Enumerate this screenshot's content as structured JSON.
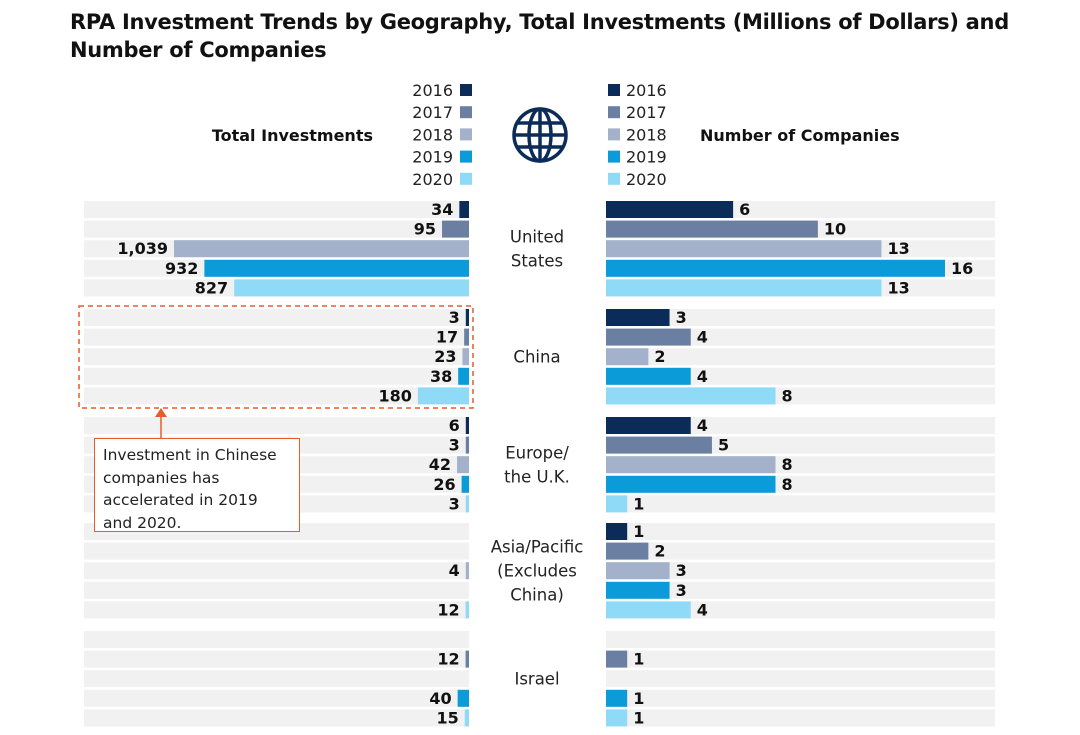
{
  "chart_data": {
    "type": "bar",
    "title": "RPA Investment Trends by Geography, Total Investments (Millions of Dollars) and Number of Companies",
    "panels": {
      "left": {
        "label": "Total Investments",
        "unit": "Millions of Dollars"
      },
      "right": {
        "label": "Number of Companies"
      }
    },
    "years": [
      "2016",
      "2017",
      "2018",
      "2019",
      "2020"
    ],
    "colors": [
      "#0b2c58",
      "#6b7fa3",
      "#a3b1cb",
      "#0b9bd8",
      "#8fdaf7"
    ],
    "regions": [
      {
        "name": [
          "United",
          "States"
        ],
        "investments": [
          34,
          95,
          1039,
          932,
          827
        ],
        "investment_labels": [
          "34",
          "95",
          "1,039",
          "932",
          "827"
        ],
        "companies": [
          6,
          10,
          13,
          16,
          13
        ]
      },
      {
        "name": [
          "China"
        ],
        "investments": [
          3,
          17,
          23,
          38,
          180
        ],
        "investment_labels": [
          "3",
          "17",
          "23",
          "38",
          "180"
        ],
        "companies": [
          3,
          4,
          2,
          4,
          8
        ]
      },
      {
        "name": [
          "Europe/",
          "the U.K."
        ],
        "investments": [
          6,
          3,
          42,
          26,
          3
        ],
        "investment_labels": [
          "6",
          "3",
          "42",
          "26",
          "3"
        ],
        "companies": [
          4,
          5,
          8,
          8,
          1
        ]
      },
      {
        "name": [
          "Asia/Pacific",
          "(Excludes",
          "China)"
        ],
        "investments": [
          null,
          null,
          4,
          null,
          12
        ],
        "investment_labels": [
          null,
          null,
          "4",
          null,
          "12"
        ],
        "companies": [
          1,
          2,
          3,
          3,
          4
        ]
      },
      {
        "name": [
          "Israel"
        ],
        "investments": [
          null,
          12,
          null,
          40,
          15
        ],
        "investment_labels": [
          null,
          "12",
          null,
          "40",
          "15"
        ],
        "companies": [
          null,
          1,
          null,
          1,
          1
        ]
      }
    ],
    "investment_range": [
      0,
      1039
    ],
    "companies_range": [
      0,
      16
    ],
    "annotation": "Investment in Chinese companies has accelerated in 2019 and 2020."
  },
  "globe_icon": "globe-icon"
}
